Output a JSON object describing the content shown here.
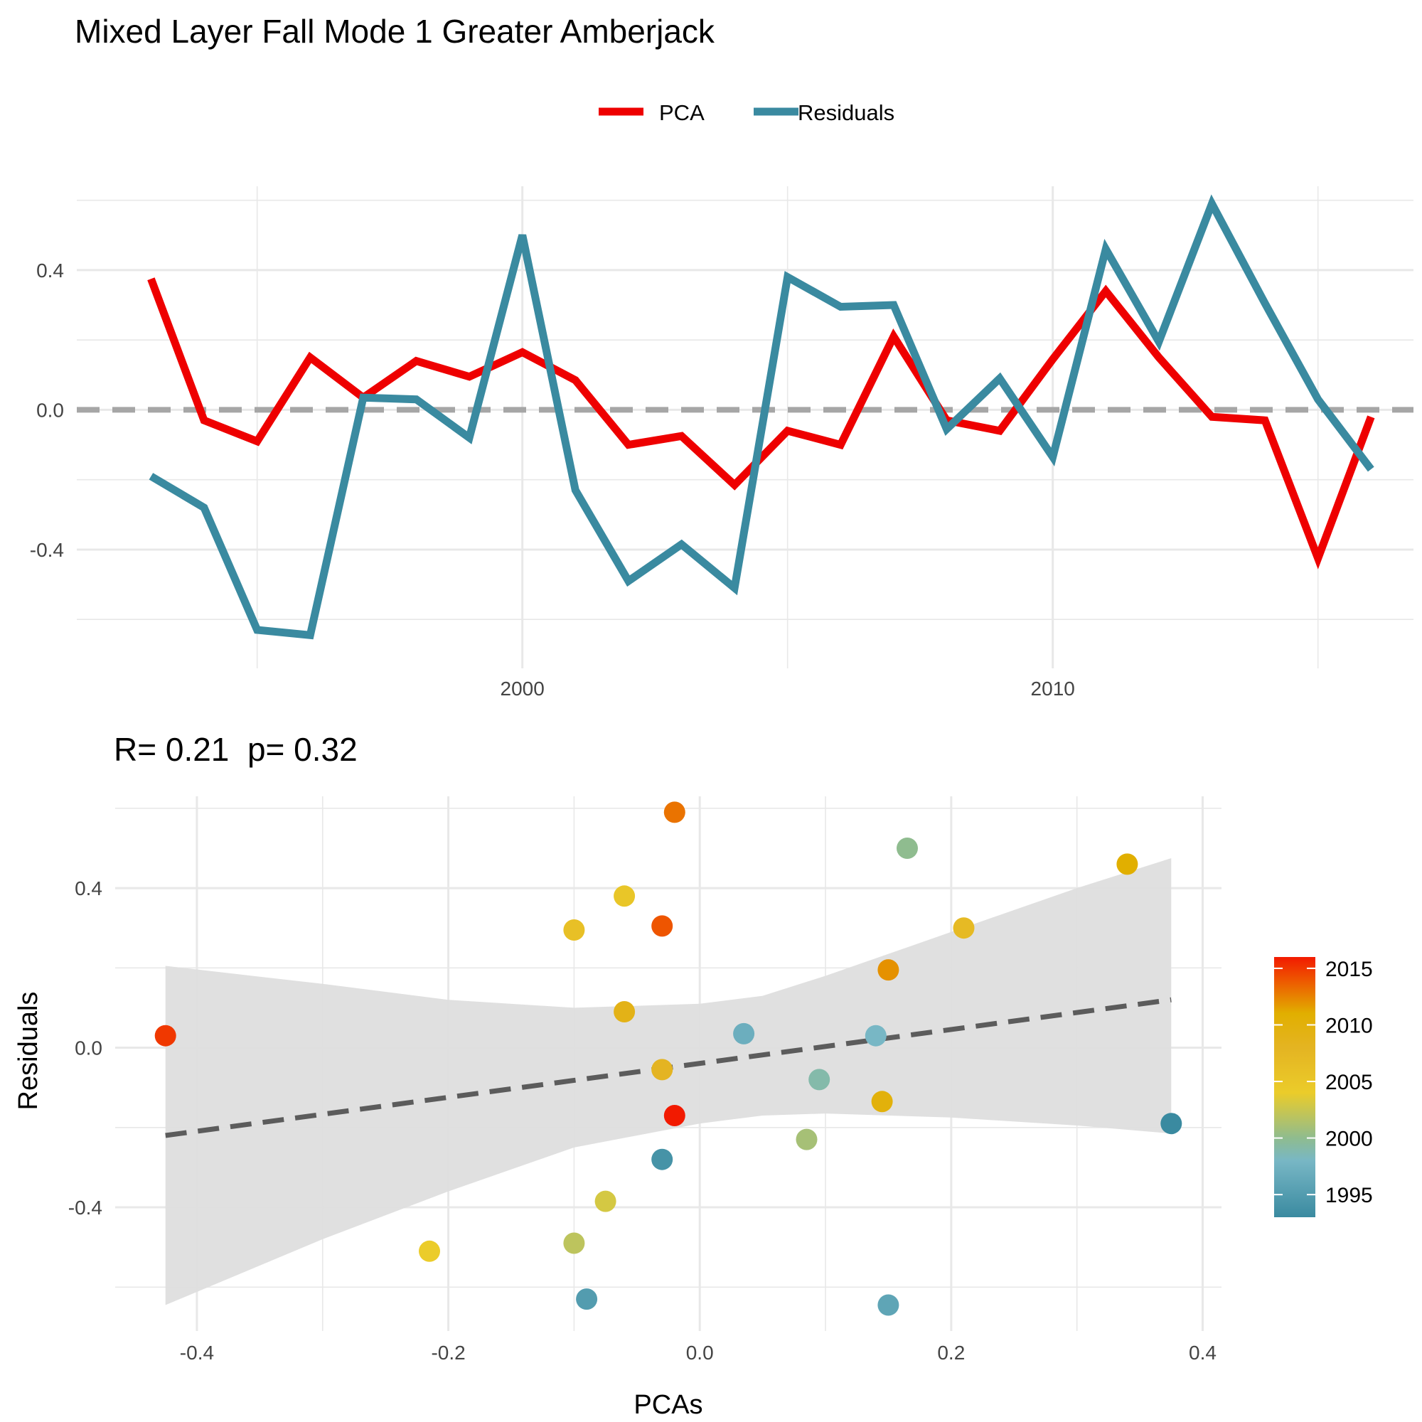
{
  "title": "Mixed Layer Fall Mode 1 Greater Amberjack",
  "colors": {
    "pca": "#EE0000",
    "residuals": "#3A8AA0",
    "zero_line": "#A6A6A6",
    "fit_line": "#5C5C5C",
    "ribbon": "#DEDEDE",
    "grid": "#E8E8E8",
    "text": "#444444"
  },
  "chart_data": [
    {
      "type": "line",
      "legend": {
        "position": "top",
        "entries": [
          "PCA",
          "Residuals"
        ]
      },
      "x": [
        1993,
        1994,
        1995,
        1996,
        1997,
        1998,
        1999,
        2000,
        2001,
        2002,
        2003,
        2004,
        2005,
        2006,
        2007,
        2008,
        2009,
        2010,
        2011,
        2012,
        2013,
        2014,
        2015,
        2016
      ],
      "series": [
        {
          "name": "PCA",
          "color": "#EE0000",
          "values": [
            0.375,
            -0.03,
            -0.09,
            0.15,
            0.035,
            0.14,
            0.095,
            0.165,
            0.085,
            -0.1,
            -0.075,
            -0.215,
            -0.06,
            -0.1,
            0.21,
            -0.03,
            -0.06,
            0.145,
            0.34,
            0.15,
            -0.02,
            -0.03,
            -0.425,
            -0.02
          ]
        },
        {
          "name": "Residuals",
          "color": "#3A8AA0",
          "values": [
            -0.19,
            -0.28,
            -0.63,
            -0.645,
            0.035,
            0.03,
            -0.08,
            0.5,
            -0.23,
            -0.49,
            -0.385,
            -0.51,
            0.38,
            0.295,
            0.3,
            -0.055,
            0.09,
            -0.135,
            0.46,
            0.195,
            0.59,
            0.305,
            0.03,
            -0.17
          ]
        }
      ],
      "xlim": [
        1991.6,
        2016.8
      ],
      "ylim": [
        -0.74,
        0.64
      ],
      "x_ticks": [
        2000,
        2010
      ],
      "y_ticks": [
        -0.4,
        0.0,
        0.4
      ],
      "y_tick_labels": [
        "-0.4",
        "0.0",
        "0.4"
      ],
      "reference_line": {
        "y": 0,
        "style": "dashed"
      },
      "grid": true
    },
    {
      "type": "scatter",
      "title": "R= 0.21  p= 0.32",
      "xlabel": "PCAs",
      "ylabel": "Residuals",
      "xlim": [
        -0.465,
        0.415
      ],
      "ylim": [
        -0.71,
        0.63
      ],
      "x_ticks": [
        -0.4,
        -0.2,
        0.0,
        0.2,
        0.4
      ],
      "x_tick_labels": [
        "-0.4",
        "-0.2",
        "0.0",
        "0.2",
        "0.4"
      ],
      "y_ticks": [
        -0.4,
        0.0,
        0.4
      ],
      "y_tick_labels": [
        "-0.4",
        "0.0",
        "0.4"
      ],
      "grid": true,
      "points": [
        {
          "x": 0.375,
          "y": -0.19,
          "year": 1993
        },
        {
          "x": -0.03,
          "y": -0.28,
          "year": 1994
        },
        {
          "x": -0.09,
          "y": -0.63,
          "year": 1995
        },
        {
          "x": 0.15,
          "y": -0.645,
          "year": 1996
        },
        {
          "x": 0.035,
          "y": 0.035,
          "year": 1997
        },
        {
          "x": 0.14,
          "y": 0.03,
          "year": 1998
        },
        {
          "x": 0.095,
          "y": -0.08,
          "year": 1999
        },
        {
          "x": 0.165,
          "y": 0.5,
          "year": 2000
        },
        {
          "x": 0.085,
          "y": -0.23,
          "year": 2001
        },
        {
          "x": -0.1,
          "y": -0.49,
          "year": 2002
        },
        {
          "x": -0.075,
          "y": -0.385,
          "year": 2003
        },
        {
          "x": -0.215,
          "y": -0.51,
          "year": 2004
        },
        {
          "x": -0.06,
          "y": 0.38,
          "year": 2005
        },
        {
          "x": -0.1,
          "y": 0.295,
          "year": 2006
        },
        {
          "x": 0.21,
          "y": 0.3,
          "year": 2007
        },
        {
          "x": -0.03,
          "y": -0.055,
          "year": 2008
        },
        {
          "x": -0.06,
          "y": 0.09,
          "year": 2009
        },
        {
          "x": 0.145,
          "y": -0.135,
          "year": 2010
        },
        {
          "x": 0.34,
          "y": 0.46,
          "year": 2011
        },
        {
          "x": 0.15,
          "y": 0.195,
          "year": 2012
        },
        {
          "x": -0.02,
          "y": 0.59,
          "year": 2013
        },
        {
          "x": -0.03,
          "y": 0.305,
          "year": 2014
        },
        {
          "x": -0.425,
          "y": 0.03,
          "year": 2015
        },
        {
          "x": -0.02,
          "y": -0.17,
          "year": 2016
        }
      ],
      "fit": {
        "x": [
          -0.425,
          0.375
        ],
        "y": [
          -0.22,
          0.12
        ],
        "style": "dashed"
      },
      "confidence_band": {
        "x": [
          -0.425,
          -0.3,
          -0.2,
          -0.1,
          0.0,
          0.05,
          0.1,
          0.2,
          0.3,
          0.375
        ],
        "upper": [
          0.205,
          0.16,
          0.12,
          0.1,
          0.11,
          0.13,
          0.18,
          0.29,
          0.4,
          0.475
        ],
        "lower": [
          -0.645,
          -0.48,
          -0.36,
          -0.25,
          -0.19,
          -0.17,
          -0.165,
          -0.175,
          -0.195,
          -0.215
        ]
      },
      "colorbar": {
        "ticks": [
          1995,
          2000,
          2005,
          2010,
          2015
        ],
        "range": [
          1993,
          2016
        ],
        "stops": [
          {
            "year": 1993,
            "color": "#3A8AA0"
          },
          {
            "year": 1998,
            "color": "#78B7C5"
          },
          {
            "year": 2000,
            "color": "#8FBC8F"
          },
          {
            "year": 2004,
            "color": "#EBCC2A"
          },
          {
            "year": 2008,
            "color": "#E4B422"
          },
          {
            "year": 2011,
            "color": "#E1AF00"
          },
          {
            "year": 2014,
            "color": "#EE5500"
          },
          {
            "year": 2016,
            "color": "#F21A00"
          }
        ]
      }
    }
  ]
}
